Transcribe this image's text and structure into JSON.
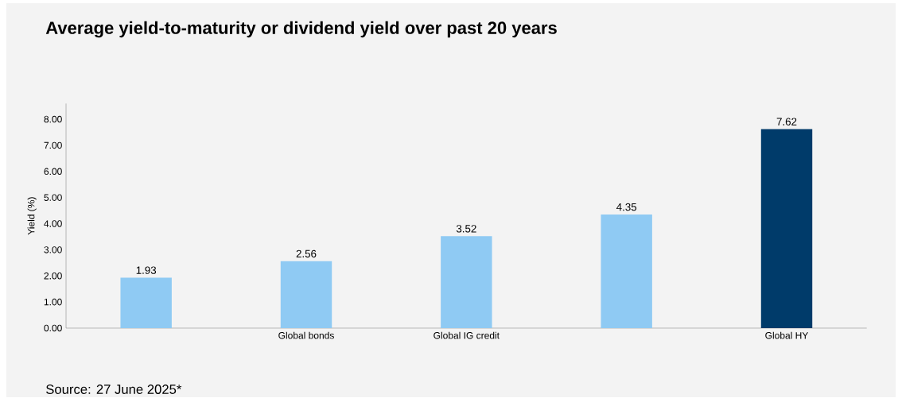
{
  "chart_data": {
    "type": "bar",
    "title": "Average yield-to-maturity or dividend yield over past 20 years",
    "ylabel": "Yield (%)",
    "categories": [
      null,
      "Global bonds",
      "Global IG credit",
      null,
      "Global HY"
    ],
    "values": [
      1.93,
      2.56,
      3.52,
      4.35,
      7.62
    ],
    "value_labels": [
      "1.93",
      "2.56",
      "3.52",
      "4.35",
      "7.62"
    ],
    "colors": [
      "#8fcaf3",
      "#8fcaf3",
      "#8fcaf3",
      "#8fcaf3",
      "#003b6a"
    ],
    "ylim": [
      0,
      8.6
    ],
    "yticks": [
      {
        "value": 0,
        "label": "0.00"
      },
      {
        "value": 1,
        "label": "1.00"
      },
      {
        "value": 2,
        "label": "2.00"
      },
      {
        "value": 3,
        "label": "3.00"
      },
      {
        "value": 4,
        "label": "4.00"
      },
      {
        "value": 5,
        "label": "5.00"
      },
      {
        "value": 6,
        "label": "6.00"
      },
      {
        "value": 7,
        "label": "7.00"
      },
      {
        "value": 8,
        "label": "8.00"
      }
    ],
    "grid": false,
    "annotations": [
      "Source: 27 June 2025*"
    ]
  }
}
